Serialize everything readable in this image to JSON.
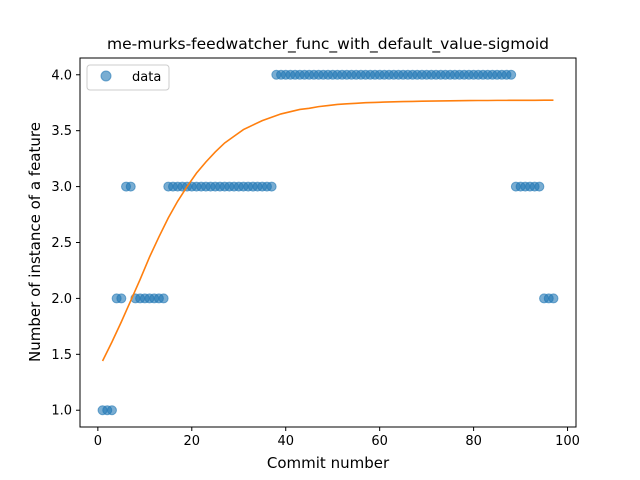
{
  "chart_data": {
    "type": "scatter",
    "title": "me-murks-feedwatcher_func_with_default_value-sigmoid",
    "xlabel": "Commit number",
    "ylabel": "Number of instance of a feature",
    "xlim": [
      -3.8,
      101.8
    ],
    "ylim": [
      0.85,
      4.15
    ],
    "xticks": [
      0,
      20,
      40,
      60,
      80,
      100
    ],
    "yticks": [
      1.0,
      1.5,
      2.0,
      2.5,
      3.0,
      3.5,
      4.0
    ],
    "grid": false,
    "legend_position": "top-left",
    "series": [
      {
        "name": "data",
        "kind": "scatter",
        "color": "#1f77b4",
        "points": [
          [
            1,
            1
          ],
          [
            2,
            1
          ],
          [
            3,
            1
          ],
          [
            4,
            2
          ],
          [
            5,
            2
          ],
          [
            6,
            3
          ],
          [
            7,
            3
          ],
          [
            8,
            2
          ],
          [
            9,
            2
          ],
          [
            10,
            2
          ],
          [
            11,
            2
          ],
          [
            12,
            2
          ],
          [
            13,
            2
          ],
          [
            14,
            2
          ],
          [
            15,
            3
          ],
          [
            16,
            3
          ],
          [
            17,
            3
          ],
          [
            18,
            3
          ],
          [
            19,
            3
          ],
          [
            20,
            3
          ],
          [
            21,
            3
          ],
          [
            22,
            3
          ],
          [
            23,
            3
          ],
          [
            24,
            3
          ],
          [
            25,
            3
          ],
          [
            26,
            3
          ],
          [
            27,
            3
          ],
          [
            28,
            3
          ],
          [
            29,
            3
          ],
          [
            30,
            3
          ],
          [
            31,
            3
          ],
          [
            32,
            3
          ],
          [
            33,
            3
          ],
          [
            34,
            3
          ],
          [
            35,
            3
          ],
          [
            36,
            3
          ],
          [
            37,
            3
          ],
          [
            38,
            4
          ],
          [
            39,
            4
          ],
          [
            40,
            4
          ],
          [
            41,
            4
          ],
          [
            42,
            4
          ],
          [
            43,
            4
          ],
          [
            44,
            4
          ],
          [
            45,
            4
          ],
          [
            46,
            4
          ],
          [
            47,
            4
          ],
          [
            48,
            4
          ],
          [
            49,
            4
          ],
          [
            50,
            4
          ],
          [
            51,
            4
          ],
          [
            52,
            4
          ],
          [
            53,
            4
          ],
          [
            54,
            4
          ],
          [
            55,
            4
          ],
          [
            56,
            4
          ],
          [
            57,
            4
          ],
          [
            58,
            4
          ],
          [
            59,
            4
          ],
          [
            60,
            4
          ],
          [
            61,
            4
          ],
          [
            62,
            4
          ],
          [
            63,
            4
          ],
          [
            64,
            4
          ],
          [
            65,
            4
          ],
          [
            66,
            4
          ],
          [
            67,
            4
          ],
          [
            68,
            4
          ],
          [
            69,
            4
          ],
          [
            70,
            4
          ],
          [
            71,
            4
          ],
          [
            72,
            4
          ],
          [
            73,
            4
          ],
          [
            74,
            4
          ],
          [
            75,
            4
          ],
          [
            76,
            4
          ],
          [
            77,
            4
          ],
          [
            78,
            4
          ],
          [
            79,
            4
          ],
          [
            80,
            4
          ],
          [
            81,
            4
          ],
          [
            82,
            4
          ],
          [
            83,
            4
          ],
          [
            84,
            4
          ],
          [
            85,
            4
          ],
          [
            86,
            4
          ],
          [
            87,
            4
          ],
          [
            88,
            4
          ],
          [
            89,
            3
          ],
          [
            90,
            3
          ],
          [
            91,
            3
          ],
          [
            92,
            3
          ],
          [
            93,
            3
          ],
          [
            94,
            3
          ],
          [
            95,
            2
          ],
          [
            96,
            2
          ],
          [
            97,
            2
          ]
        ]
      },
      {
        "kind": "line",
        "color": "#ff7f0e",
        "points": [
          [
            1,
            1.44
          ],
          [
            3,
            1.61
          ],
          [
            5,
            1.79
          ],
          [
            7,
            1.98
          ],
          [
            9,
            2.17
          ],
          [
            11,
            2.37
          ],
          [
            13,
            2.55
          ],
          [
            15,
            2.72
          ],
          [
            17,
            2.87
          ],
          [
            19,
            3.0
          ],
          [
            21,
            3.12
          ],
          [
            23,
            3.22
          ],
          [
            25,
            3.31
          ],
          [
            27,
            3.39
          ],
          [
            29,
            3.45
          ],
          [
            31,
            3.51
          ],
          [
            33,
            3.55
          ],
          [
            35,
            3.59
          ],
          [
            37,
            3.62
          ],
          [
            39,
            3.65
          ],
          [
            41,
            3.67
          ],
          [
            43,
            3.69
          ],
          [
            45,
            3.7
          ],
          [
            47,
            3.715
          ],
          [
            49,
            3.725
          ],
          [
            51,
            3.735
          ],
          [
            53,
            3.74
          ],
          [
            55,
            3.745
          ],
          [
            57,
            3.75
          ],
          [
            59,
            3.753
          ],
          [
            61,
            3.756
          ],
          [
            63,
            3.758
          ],
          [
            65,
            3.76
          ],
          [
            67,
            3.762
          ],
          [
            69,
            3.764
          ],
          [
            71,
            3.765
          ],
          [
            73,
            3.766
          ],
          [
            75,
            3.767
          ],
          [
            77,
            3.768
          ],
          [
            79,
            3.769
          ],
          [
            81,
            3.77
          ],
          [
            83,
            3.77
          ],
          [
            85,
            3.771
          ],
          [
            87,
            3.771
          ],
          [
            89,
            3.772
          ],
          [
            91,
            3.772
          ],
          [
            93,
            3.772
          ],
          [
            95,
            3.773
          ],
          [
            97,
            3.773
          ]
        ]
      }
    ]
  }
}
